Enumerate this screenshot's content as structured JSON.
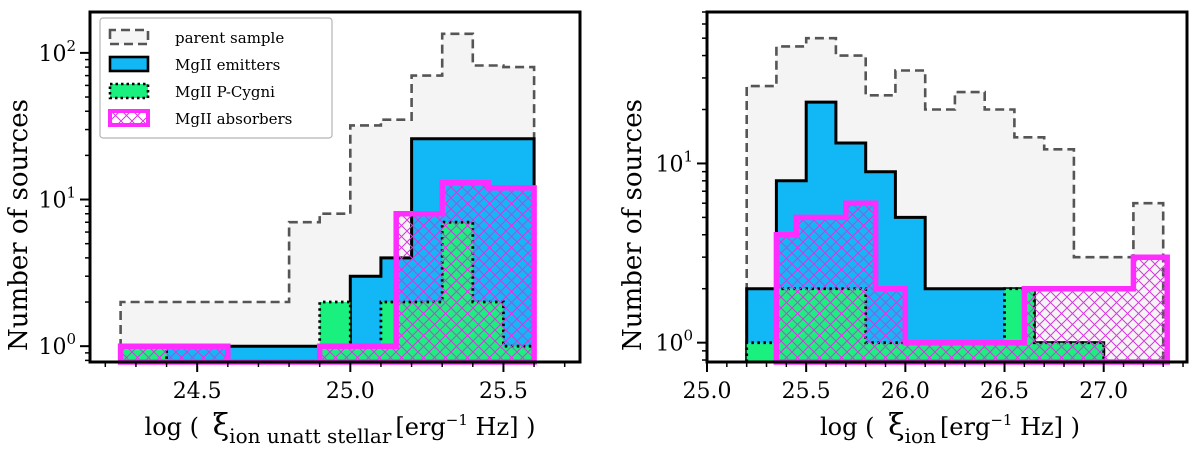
{
  "chart_data": [
    {
      "type": "histogram",
      "yscale": "log",
      "xlabel_prefix": "log (",
      "xlabel_symbol": "ξ",
      "xlabel_subscript": "ion unatt stellar",
      "xlabel_unit_a": "[erg",
      "xlabel_unit_exp": "−1",
      "xlabel_unit_b": " Hz] )",
      "ylabel": "Number of sources",
      "xlim": [
        24.15,
        25.75
      ],
      "ylim": [
        0.78,
        190
      ],
      "xticks": [
        {
          "value": 24.5,
          "label": "24.5"
        },
        {
          "value": 25.0,
          "label": "25.0"
        },
        {
          "value": 25.5,
          "label": "25.5"
        }
      ],
      "yticks": [
        {
          "value": 1,
          "base": "10",
          "exp": "0"
        },
        {
          "value": 10,
          "base": "10",
          "exp": "1"
        },
        {
          "value": 100,
          "base": "10",
          "exp": "2"
        }
      ],
      "legend": [
        "parent sample",
        "MgII emitters",
        "MgII P-Cygni",
        "MgII absorbers"
      ],
      "series": [
        {
          "name": "parent sample",
          "style": "parent",
          "edges": [
            24.25,
            24.4,
            24.5,
            24.6,
            24.7,
            24.8,
            24.9,
            25.0,
            25.1,
            25.2,
            25.3,
            25.4,
            25.5,
            25.6
          ],
          "counts": [
            2,
            2,
            2,
            2,
            2,
            7,
            8,
            32,
            35,
            70,
            135,
            82,
            80
          ]
        },
        {
          "name": "MgII emitters",
          "style": "emitters",
          "edges": [
            24.25,
            24.4,
            24.55,
            24.7,
            25.0,
            25.1,
            25.2,
            25.3,
            25.5,
            25.6
          ],
          "counts": [
            1,
            1,
            1,
            1,
            3,
            4,
            26,
            26,
            26
          ]
        },
        {
          "name": "MgII P-Cygni",
          "style": "pcygni",
          "edges": [
            24.25,
            24.4,
            24.9,
            25.0,
            25.1,
            25.2,
            25.3,
            25.4,
            25.5,
            25.6
          ],
          "counts": [
            1,
            0.78,
            2,
            1,
            2,
            2,
            7,
            2,
            1
          ]
        },
        {
          "name": "MgII absorbers",
          "style": "absorbers",
          "edges": [
            24.25,
            24.6,
            24.9,
            25.15,
            25.3,
            25.45,
            25.6
          ],
          "counts": [
            1,
            0.78,
            1,
            8,
            13,
            12
          ]
        }
      ]
    },
    {
      "type": "histogram",
      "yscale": "log",
      "xlabel_prefix": "log (",
      "xlabel_symbol": "ξ",
      "xlabel_subscript": "ion",
      "xlabel_unit_a": "[erg",
      "xlabel_unit_exp": "−1",
      "xlabel_unit_b": " Hz] )",
      "ylabel": "Number of sources",
      "xlim": [
        25.0,
        27.42
      ],
      "ylim": [
        0.78,
        70
      ],
      "xticks": [
        {
          "value": 25.0,
          "label": "25.0"
        },
        {
          "value": 25.5,
          "label": "25.5"
        },
        {
          "value": 26.0,
          "label": "26.0"
        },
        {
          "value": 26.5,
          "label": "26.5"
        },
        {
          "value": 27.0,
          "label": "27.0"
        }
      ],
      "yticks": [
        {
          "value": 1,
          "base": "10",
          "exp": "0"
        },
        {
          "value": 10,
          "base": "10",
          "exp": "1"
        }
      ],
      "series": [
        {
          "name": "parent sample",
          "style": "parent",
          "edges": [
            25.2,
            25.35,
            25.5,
            25.65,
            25.8,
            25.95,
            26.1,
            26.25,
            26.4,
            26.55,
            26.7,
            26.85,
            27.0,
            27.15,
            27.3
          ],
          "counts": [
            27,
            45,
            50,
            40,
            24,
            33,
            20,
            25,
            20,
            14,
            12,
            3,
            3,
            6
          ]
        },
        {
          "name": "MgII emitters",
          "style": "emitters",
          "edges": [
            25.2,
            25.35,
            25.5,
            25.65,
            25.8,
            25.95,
            26.1,
            26.3,
            26.65,
            26.8,
            27.0
          ],
          "counts": [
            2,
            8,
            22,
            13,
            9,
            5,
            2,
            2,
            1,
            1
          ]
        },
        {
          "name": "MgII P-Cygni",
          "style": "pcygni",
          "edges": [
            25.2,
            25.35,
            25.65,
            25.8,
            26.5,
            26.65,
            27.0
          ],
          "counts": [
            1,
            2,
            2,
            1,
            2,
            1
          ]
        },
        {
          "name": "MgII absorbers",
          "style": "absorbers",
          "edges": [
            25.35,
            25.45,
            25.55,
            25.7,
            25.85,
            26.0,
            26.4,
            26.6,
            26.8,
            27.0,
            27.15,
            27.32
          ],
          "counts": [
            4,
            5,
            5,
            6,
            2,
            1,
            1,
            2,
            2,
            2,
            3
          ]
        }
      ]
    }
  ]
}
